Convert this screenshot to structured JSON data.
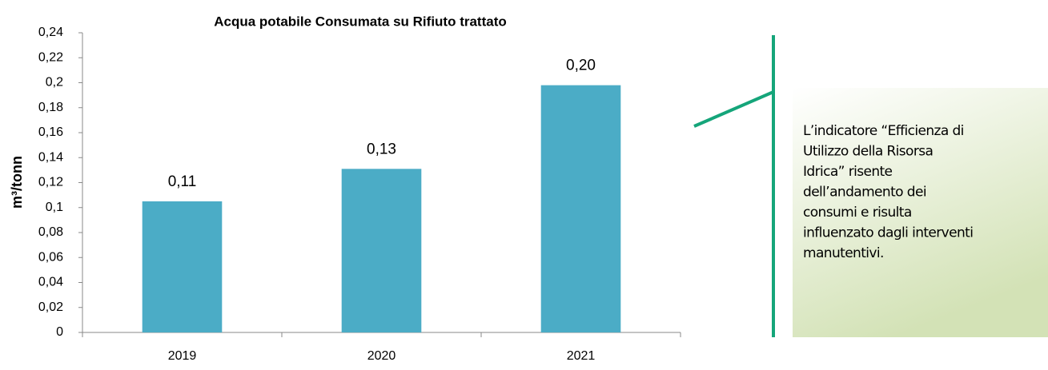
{
  "chart_data": {
    "type": "bar",
    "title": "Acqua potabile Consumata su Rifiuto trattato",
    "y_label": "m³/tonn",
    "categories": [
      "2019",
      "2020",
      "2021"
    ],
    "values": [
      0.105,
      0.131,
      0.198
    ],
    "value_labels": [
      "0,11",
      "0,13",
      "0,20"
    ],
    "color": "#4bacc6",
    "ylim": [
      0,
      0.24
    ],
    "yticks": [
      0,
      {
        "value": 0.02,
        "label": "0,02"
      },
      {
        "value": 0.04,
        "label": "0,04"
      },
      {
        "value": 0.06,
        "label": "0,06"
      },
      {
        "value": 0.08,
        "label": "0,08"
      },
      {
        "value": 0.1,
        "label": "0,1"
      },
      {
        "value": 0.12,
        "label": "0,12"
      },
      {
        "value": 0.14,
        "label": "0,14"
      },
      {
        "value": 0.16,
        "label": "0,16"
      },
      {
        "value": 0.18,
        "label": "0,18"
      },
      {
        "value": 0.2,
        "label": "0,2"
      },
      {
        "value": 0.22,
        "label": "0,22"
      },
      {
        "value": 0.24,
        "label": "0,24"
      }
    ],
    "grid": false,
    "annotation": [
      "L’indicatore “Efficienza di",
      "Utilizzo della Risorsa",
      "Idrica” risente",
      "dell’andamento dei",
      "consumi e risulta",
      "influenzato dagli interventi",
      "manutentivi."
    ]
  }
}
